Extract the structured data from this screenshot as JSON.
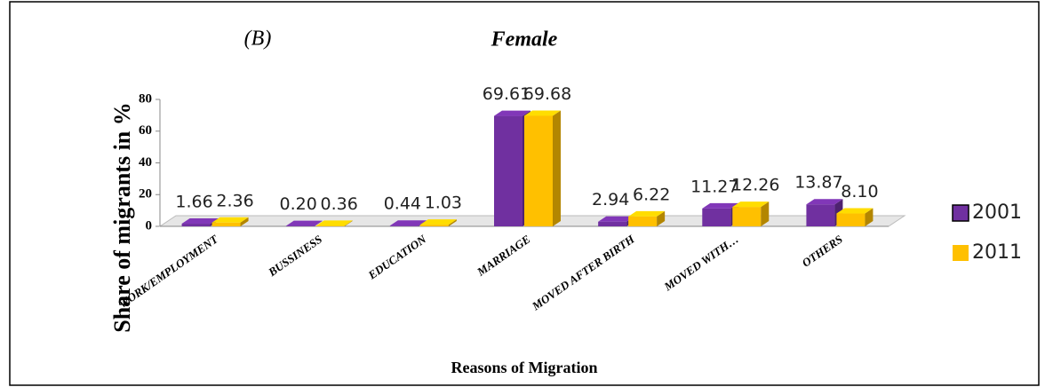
{
  "chart_data": {
    "type": "bar3d",
    "panel_label": "(B)",
    "title": "Female",
    "y_label": "Share of migrants in %",
    "x_label": "Reasons of Migration",
    "categories": [
      "WORK/EMPLOYMENT",
      "BUSSINESS",
      "EDUCATION",
      "MARRIAGE",
      "MOVED AFTER BIRTH",
      "MOVED WITH…",
      "OTHERS"
    ],
    "series": [
      {
        "name": "2001",
        "color": "#7030a0",
        "values": [
          1.66,
          0.2,
          0.44,
          69.61,
          2.94,
          11.27,
          13.87
        ],
        "value_labels": [
          "1.66",
          "0.20",
          "0.44",
          "69.61",
          "2.94",
          "11.27",
          "13.87"
        ]
      },
      {
        "name": "2011",
        "color": "#ffc000",
        "values": [
          2.36,
          0.36,
          1.03,
          69.68,
          6.22,
          12.26,
          8.1
        ],
        "value_labels": [
          "2.36",
          "0.36",
          "1.03",
          "69.68",
          "6.22",
          "12.26",
          "8.10"
        ]
      }
    ],
    "ylim": [
      0,
      80
    ],
    "yticks": [
      0,
      20,
      40,
      60,
      80
    ],
    "legend": "right"
  }
}
